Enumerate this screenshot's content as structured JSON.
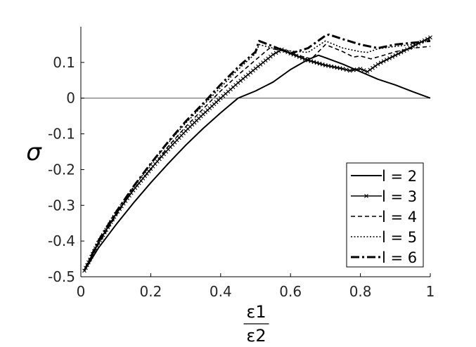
{
  "chart_data": {
    "type": "line",
    "title": "",
    "ylabel": "σ",
    "xlabel": {
      "numerator": "ε1",
      "denominator": "ε2"
    },
    "xlim": [
      0,
      1
    ],
    "ylim": [
      -0.5,
      0.2
    ],
    "xticks": [
      0,
      0.2,
      0.4,
      0.6,
      0.8,
      1
    ],
    "xtick_labels": [
      "0",
      "0.2",
      "0.4",
      "0.6",
      "0.8",
      "1"
    ],
    "yticks": [
      -0.5,
      -0.4,
      -0.3,
      -0.2,
      -0.1,
      0,
      0.1
    ],
    "ytick_labels": [
      "-0.5",
      "-0.4",
      "-0.3",
      "-0.2",
      "-0.1",
      "0",
      "0.1"
    ],
    "grid": false,
    "reference_line_y": 0,
    "legend_position": "bottom-right",
    "series": [
      {
        "name": "l = 2",
        "style": "solid",
        "x": [
          0.01,
          0.05,
          0.1,
          0.15,
          0.2,
          0.25,
          0.3,
          0.35,
          0.4,
          0.45,
          0.5,
          0.55,
          0.6,
          0.65,
          0.68,
          0.7,
          0.75,
          0.8,
          0.85,
          0.9,
          0.95,
          1.0
        ],
        "y": [
          -0.483,
          -0.42,
          -0.355,
          -0.294,
          -0.237,
          -0.183,
          -0.132,
          -0.085,
          -0.041,
          0.0,
          0.02,
          0.045,
          0.08,
          0.108,
          0.12,
          0.113,
          0.095,
          0.074,
          0.053,
          0.037,
          0.018,
          0.0
        ]
      },
      {
        "name": "l = 3",
        "style": "solid-star",
        "x": [
          0.01,
          0.05,
          0.1,
          0.15,
          0.2,
          0.25,
          0.3,
          0.35,
          0.4,
          0.45,
          0.5,
          0.55,
          0.575,
          0.6,
          0.65,
          0.7,
          0.75,
          0.77,
          0.8,
          0.82,
          0.85,
          0.9,
          0.95,
          1.0
        ],
        "y": [
          -0.483,
          -0.405,
          -0.325,
          -0.258,
          -0.198,
          -0.143,
          -0.092,
          -0.045,
          0.0,
          0.043,
          0.083,
          0.122,
          0.136,
          0.125,
          0.106,
          0.092,
          0.082,
          0.077,
          0.082,
          0.074,
          0.095,
          0.12,
          0.145,
          0.17
        ]
      },
      {
        "name": "l = 4",
        "style": "dashed",
        "x": [
          0.01,
          0.05,
          0.1,
          0.15,
          0.2,
          0.25,
          0.3,
          0.35,
          0.4,
          0.45,
          0.5,
          0.54,
          0.58,
          0.62,
          0.66,
          0.7,
          0.75,
          0.78,
          0.8,
          0.83,
          0.86,
          0.9,
          0.95,
          1.0
        ],
        "y": [
          -0.483,
          -0.41,
          -0.33,
          -0.256,
          -0.2,
          -0.135,
          -0.08,
          -0.03,
          0.02,
          0.065,
          0.107,
          0.14,
          0.132,
          0.12,
          0.11,
          0.15,
          0.13,
          0.115,
          0.118,
          0.11,
          0.118,
          0.13,
          0.14,
          0.145
        ]
      },
      {
        "name": "l = 5",
        "style": "dotted",
        "x": [
          0.01,
          0.05,
          0.1,
          0.15,
          0.2,
          0.25,
          0.3,
          0.35,
          0.4,
          0.45,
          0.5,
          0.51,
          0.55,
          0.6,
          0.65,
          0.7,
          0.75,
          0.8,
          0.82,
          0.85,
          0.9,
          0.95,
          1.0
        ],
        "y": [
          -0.483,
          -0.405,
          -0.325,
          -0.25,
          -0.185,
          -0.125,
          -0.07,
          -0.02,
          0.03,
          0.08,
          0.125,
          0.15,
          0.14,
          0.132,
          0.128,
          0.16,
          0.14,
          0.13,
          0.128,
          0.138,
          0.145,
          0.15,
          0.165
        ]
      },
      {
        "name": "l = 6",
        "style": "dash-dot-thick",
        "x": [
          0.01,
          0.05,
          0.1,
          0.15,
          0.2,
          0.25,
          0.3,
          0.35,
          0.4,
          0.45,
          0.5,
          0.51,
          0.55,
          0.6,
          0.65,
          0.7,
          0.71,
          0.75,
          0.8,
          0.85,
          0.9,
          0.95,
          1.0
        ],
        "y": [
          -0.483,
          -0.4,
          -0.32,
          -0.248,
          -0.183,
          -0.122,
          -0.065,
          -0.015,
          0.038,
          0.087,
          0.13,
          0.16,
          0.145,
          0.125,
          0.14,
          0.175,
          0.178,
          0.165,
          0.15,
          0.14,
          0.15,
          0.155,
          0.16
        ]
      }
    ]
  }
}
